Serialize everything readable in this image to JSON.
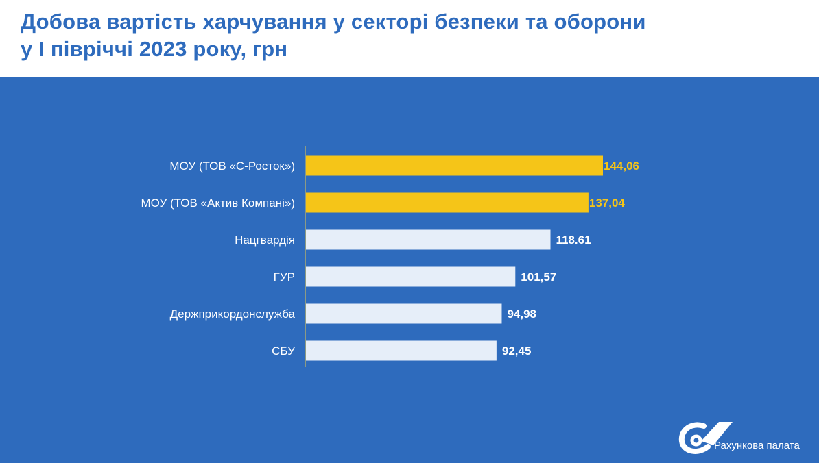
{
  "title": {
    "line1": "Добова вартість харчування у секторі безпеки та оборони",
    "line2": "у І півріччі 2023 року, грн"
  },
  "colors": {
    "background": "#2e6bbd",
    "highlight_bar": "#f5c518",
    "regular_bar": "#e6eef9",
    "title": "#2e6bbd"
  },
  "chart_data": {
    "type": "bar",
    "orientation": "horizontal",
    "categories": [
      "МОУ (ТОВ «С-Росток»)",
      "МОУ (ТОВ «Актив Компані»)",
      "Нацгвардія",
      "ГУР",
      "Держприкордонслужба",
      "СБУ"
    ],
    "values": [
      144.06,
      137.04,
      118.61,
      101.57,
      94.98,
      92.45
    ],
    "value_labels": [
      "144,06",
      "137,04",
      "118.61",
      "101,57",
      "94,98",
      "92,45"
    ],
    "highlighted": [
      true,
      true,
      false,
      false,
      false,
      false
    ],
    "xlim": [
      0,
      160
    ],
    "grid": false,
    "legend": "none"
  },
  "logo": {
    "icon": "rakhunkova-palata-logo-icon",
    "text": "Рахункова палата"
  }
}
